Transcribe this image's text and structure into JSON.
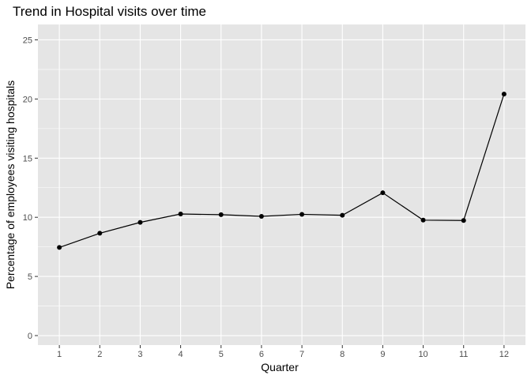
{
  "chart_data": {
    "type": "line",
    "title": "Trend in Hospital visits over time",
    "xlabel": "Quarter",
    "ylabel": "Percentage of employees visiting hospitals",
    "x": [
      1,
      2,
      3,
      4,
      5,
      6,
      7,
      8,
      9,
      10,
      11,
      12
    ],
    "series": [
      {
        "values": [
          7.45,
          8.65,
          9.57,
          10.28,
          10.22,
          10.08,
          10.25,
          10.17,
          12.07,
          9.76,
          9.73,
          20.42
        ]
      }
    ],
    "xlim": [
      0.47,
      12.53
    ],
    "ylim": [
      -0.8,
      26.3
    ],
    "x_ticks": [
      "1",
      "2",
      "3",
      "4",
      "5",
      "6",
      "7",
      "8",
      "9",
      "10",
      "11",
      "12"
    ],
    "y_ticks": [
      0,
      5,
      10,
      15,
      20,
      25
    ],
    "grid": true,
    "markers": true,
    "legend": "none",
    "colors": {
      "panel_background": "#e5e5e5",
      "grid": "#ffffff",
      "line": "#000000",
      "tick_text": "#4d4d4d"
    }
  }
}
